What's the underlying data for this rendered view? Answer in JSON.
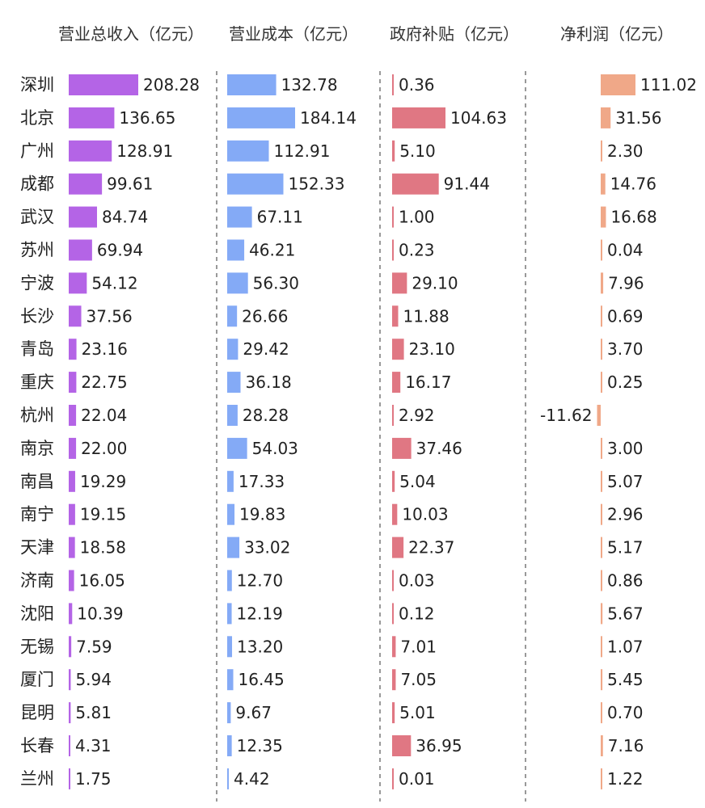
{
  "chart_data": {
    "type": "bar",
    "orientation": "horizontal",
    "categories": [
      "深圳",
      "北京",
      "广州",
      "成都",
      "武汉",
      "苏州",
      "宁波",
      "长沙",
      "青岛",
      "重庆",
      "杭州",
      "南京",
      "南昌",
      "南宁",
      "天津",
      "济南",
      "沈阳",
      "无锡",
      "厦门",
      "昆明",
      "长春",
      "兰州"
    ],
    "series": [
      {
        "name": "营业总收入（亿元）",
        "color": "#b464e6",
        "values": [
          208.28,
          136.65,
          128.91,
          99.61,
          84.74,
          69.94,
          54.12,
          37.56,
          23.16,
          22.75,
          22.04,
          22.0,
          19.29,
          19.15,
          18.58,
          16.05,
          10.39,
          7.59,
          5.94,
          5.81,
          4.31,
          1.75
        ]
      },
      {
        "name": "营业成本（亿元）",
        "color": "#84aaf6",
        "values": [
          132.78,
          184.14,
          112.91,
          152.33,
          67.11,
          46.21,
          56.3,
          26.66,
          29.42,
          36.18,
          28.28,
          54.03,
          17.33,
          19.83,
          33.02,
          12.7,
          12.19,
          13.2,
          16.45,
          9.67,
          12.35,
          4.42
        ]
      },
      {
        "name": "政府补贴（亿元）",
        "color": "#e07783",
        "values": [
          0.36,
          104.63,
          5.1,
          91.44,
          1.0,
          0.23,
          29.1,
          11.88,
          23.1,
          16.17,
          2.92,
          37.46,
          5.04,
          10.03,
          22.37,
          0.03,
          0.12,
          7.01,
          7.05,
          5.01,
          36.95,
          0.01
        ]
      },
      {
        "name": "净利润（亿元）",
        "color": "#f0a888",
        "values": [
          111.02,
          31.56,
          2.3,
          14.76,
          16.68,
          0.04,
          7.96,
          0.69,
          3.7,
          0.25,
          -11.62,
          3.0,
          5.07,
          2.96,
          5.17,
          0.86,
          5.67,
          1.07,
          5.45,
          0.7,
          7.16,
          1.22
        ]
      }
    ],
    "grid": false,
    "legend": "none"
  }
}
